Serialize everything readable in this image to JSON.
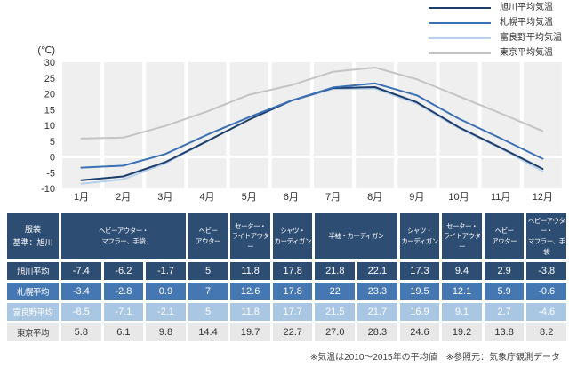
{
  "chart_data": {
    "type": "line",
    "title": "",
    "ylabel": "(℃)",
    "categories": [
      "1月",
      "2月",
      "3月",
      "4月",
      "5月",
      "6月",
      "7月",
      "8月",
      "9月",
      "10月",
      "11月",
      "12月"
    ],
    "ylim": [
      -10,
      30
    ],
    "yticks": [
      30,
      25,
      20,
      15,
      10,
      5,
      0,
      -5,
      -10
    ],
    "grid": "month-bands",
    "band_color": "#efefef",
    "legend_position": "top-right",
    "series": [
      {
        "name": "旭川平均気温",
        "color": "#1e3f6d",
        "values": [
          -7.4,
          -6.2,
          -1.7,
          5,
          11.8,
          17.8,
          21.8,
          22.1,
          17.3,
          9.4,
          2.9,
          -3.8
        ]
      },
      {
        "name": "札幌平均気温",
        "color": "#3c70b4",
        "values": [
          -3.4,
          -2.8,
          0.9,
          7,
          12.6,
          17.8,
          22,
          23.3,
          19.5,
          12.1,
          5.9,
          -0.6
        ]
      },
      {
        "name": "富良野平均気温",
        "color": "#b8d0ea",
        "values": [
          -8.5,
          -7.1,
          -2.1,
          5,
          11.8,
          17.7,
          21.5,
          21.7,
          16.9,
          9.1,
          2.7,
          -4.6
        ]
      },
      {
        "name": "東京平均気温",
        "color": "#c4c4c4",
        "values": [
          5.8,
          6.1,
          9.8,
          14.4,
          19.7,
          22.7,
          27.0,
          28.3,
          24.6,
          19.2,
          13.8,
          8.2
        ]
      }
    ]
  },
  "legend": {
    "items": [
      {
        "label": "旭川平均気温",
        "color": "#1e3f6d"
      },
      {
        "label": "札幌平均気温",
        "color": "#3c70b4"
      },
      {
        "label": "富良野平均気温",
        "color": "#b8d0ea"
      },
      {
        "label": "東京平均気温",
        "color": "#c4c4c4"
      }
    ]
  },
  "table": {
    "header_bg": "#2e4d73",
    "corner_header": "服装\n基準：旭川",
    "clothing_headers": [
      {
        "label": "ヘビーアウター・\nマフラー、手袋",
        "span": 3
      },
      {
        "label": "ヘビー\nアウター",
        "span": 1
      },
      {
        "label": "セーター・\nライトアウター",
        "span": 1
      },
      {
        "label": "シャツ・\nカーディガン",
        "span": 1
      },
      {
        "label": "半袖・カーディガン",
        "span": 2
      },
      {
        "label": "シャツ・\nカーディガン",
        "span": 1
      },
      {
        "label": "セーター・\nライトアウター",
        "span": 1
      },
      {
        "label": "ヘビー\nアウター",
        "span": 1
      },
      {
        "label": "ヘビーアウター・\nマフラー、手袋",
        "span": 1
      }
    ],
    "rows": [
      {
        "label": "旭川平均",
        "bg": "#2e4d73",
        "text_color": "#ffffff",
        "values": [
          "-7.4",
          "-6.2",
          "-1.7",
          "5",
          "11.8",
          "17.8",
          "21.8",
          "22.1",
          "17.3",
          "9.4",
          "2.9",
          "-3.8"
        ]
      },
      {
        "label": "札幌平均",
        "bg": "#4577b2",
        "text_color": "#ffffff",
        "values": [
          "-3.4",
          "-2.8",
          "0.9",
          "7",
          "12.6",
          "17.8",
          "22",
          "23.3",
          "19.5",
          "12.1",
          "5.9",
          "-0.6"
        ]
      },
      {
        "label": "富良野平均",
        "bg": "#a9c6e3",
        "text_color": "#ffffff",
        "values": [
          "-8.5",
          "-7.1",
          "-2.1",
          "5",
          "11.8",
          "17.7",
          "21.5",
          "21.7",
          "16.9",
          "9.1",
          "2.7",
          "-4.6"
        ]
      },
      {
        "label": "東京平均",
        "bg": "#e8e8e8",
        "text_color": "#333333",
        "values": [
          "5.8",
          "6.1",
          "9.8",
          "14.4",
          "19.7",
          "22.7",
          "27.0",
          "28.3",
          "24.6",
          "19.2",
          "13.8",
          "8.2"
        ]
      }
    ]
  },
  "footer": {
    "note": "※気温は2010～2015年の平均値　※参照元：気象庁観測データ"
  }
}
